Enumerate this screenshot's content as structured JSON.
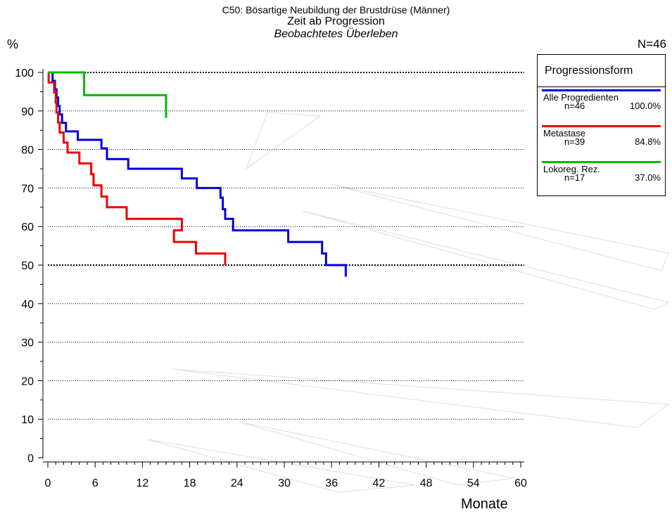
{
  "titles": {
    "line1": "C50: Bösartige Neubildung der Brustdrüse (Männer)",
    "line2": "Zeit ab Progression",
    "line3": "Beobachtetes Überleben"
  },
  "y_unit": "%",
  "n_total": "N=46",
  "x_unit": "Monate",
  "legend": {
    "title": "Progressionsform",
    "entries": [
      {
        "name": "Alle Progredienten",
        "n": "n=46",
        "pct": "100.0%",
        "color": "#0000dd"
      },
      {
        "name": "Metastase",
        "n": "n=39",
        "pct": "84.8%",
        "color": "#ee0000"
      },
      {
        "name": "Lokoreg. Rez.",
        "n": "n=17",
        "pct": "37.0%",
        "color": "#00bb00"
      }
    ]
  },
  "chart_data": {
    "type": "line",
    "step": true,
    "xlim": [
      0,
      60
    ],
    "ylim": [
      0,
      100
    ],
    "xticks": [
      0,
      6,
      12,
      18,
      24,
      30,
      36,
      42,
      48,
      54,
      60
    ],
    "yticks": [
      0,
      10,
      20,
      30,
      40,
      50,
      60,
      70,
      80,
      90,
      100
    ],
    "grid_y": [
      10,
      20,
      30,
      40,
      50,
      60,
      70,
      80,
      90,
      100
    ],
    "emphasized_grid_y": [
      50,
      100
    ],
    "series": [
      {
        "name": "Alle Progredienten",
        "color": "#0000dd",
        "points": [
          [
            0,
            100
          ],
          [
            0.6,
            97.8
          ],
          [
            0.9,
            95.6
          ],
          [
            1.1,
            93.5
          ],
          [
            1.3,
            91.3
          ],
          [
            1.5,
            89.1
          ],
          [
            1.8,
            86.9
          ],
          [
            2.3,
            84.7
          ],
          [
            3.8,
            82.5
          ],
          [
            6.8,
            80.3
          ],
          [
            7.5,
            77.5
          ],
          [
            10.2,
            75
          ],
          [
            17,
            72.5
          ],
          [
            18.9,
            70
          ],
          [
            21.9,
            67.5
          ],
          [
            22.2,
            64.5
          ],
          [
            22.5,
            62
          ],
          [
            23.5,
            59
          ],
          [
            30.5,
            56
          ],
          [
            34.8,
            53
          ],
          [
            35.3,
            50
          ],
          [
            37.8,
            47
          ]
        ]
      },
      {
        "name": "Metastase",
        "color": "#ee0000",
        "points": [
          [
            0,
            100
          ],
          [
            0.1,
            97.4
          ],
          [
            0.8,
            94.8
          ],
          [
            1.0,
            92.2
          ],
          [
            1.1,
            89.6
          ],
          [
            1.3,
            87
          ],
          [
            1.5,
            84.4
          ],
          [
            2.0,
            81.8
          ],
          [
            2.5,
            79.2
          ],
          [
            4.0,
            76.4
          ],
          [
            5.5,
            73.6
          ],
          [
            5.8,
            70.7
          ],
          [
            6.8,
            67.8
          ],
          [
            7.5,
            65
          ],
          [
            10,
            62
          ],
          [
            17,
            59
          ],
          [
            16,
            56
          ],
          [
            18.8,
            53
          ],
          [
            22.5,
            50
          ]
        ]
      },
      {
        "name": "Lokoreg. Rez.",
        "color": "#00bb00",
        "points": [
          [
            0,
            100
          ],
          [
            4.6,
            94.1
          ],
          [
            15,
            88.2
          ]
        ]
      }
    ]
  }
}
